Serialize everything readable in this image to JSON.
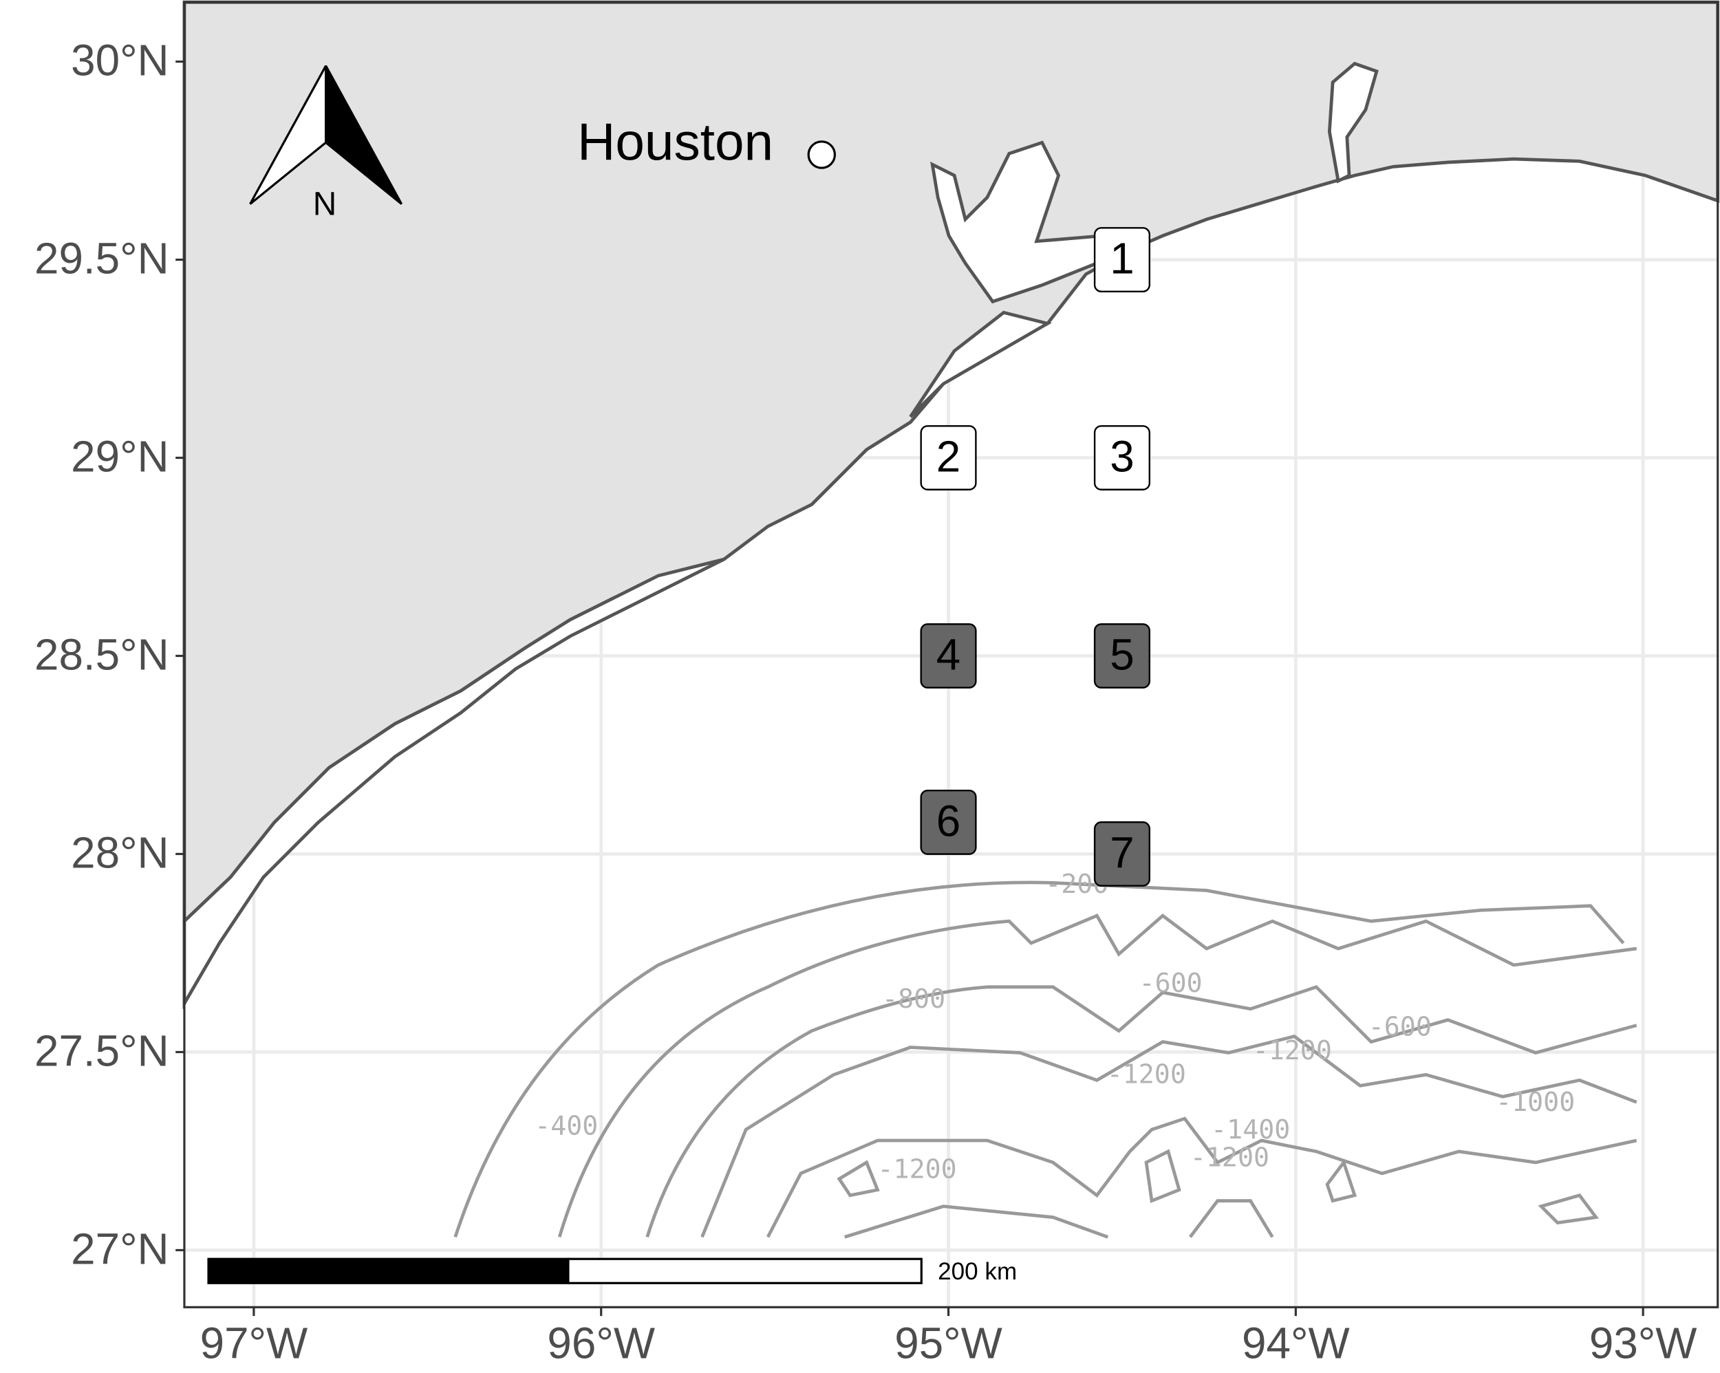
{
  "map": {
    "xlim": [
      -97.2,
      -92.785
    ],
    "ylim": [
      26.856,
      30.15
    ],
    "xticks": [
      {
        "value": -97,
        "label": "97°W"
      },
      {
        "value": -96,
        "label": "96°W"
      },
      {
        "value": -95,
        "label": "95°W"
      },
      {
        "value": -94,
        "label": "94°W"
      },
      {
        "value": -93,
        "label": "93°W"
      }
    ],
    "yticks": [
      {
        "value": 27,
        "label": "27°N"
      },
      {
        "value": 27.5,
        "label": "27.5°N"
      },
      {
        "value": 28,
        "label": "28°N"
      },
      {
        "value": 28.5,
        "label": "28.5°N"
      },
      {
        "value": 29,
        "label": "29°N"
      },
      {
        "value": 29.5,
        "label": "29.5°N"
      },
      {
        "value": 30,
        "label": "30°N"
      }
    ],
    "grid": true,
    "city": {
      "name": "Houston",
      "lon": -95.365,
      "lat": 29.765
    },
    "stations": [
      {
        "label": "1",
        "lon": -94.5,
        "lat": 29.5,
        "color": "#ffffff"
      },
      {
        "label": "2",
        "lon": -95.0,
        "lat": 29.0,
        "color": "#ffffff"
      },
      {
        "label": "3",
        "lon": -94.5,
        "lat": 29.0,
        "color": "#ffffff"
      },
      {
        "label": "4",
        "lon": -95.0,
        "lat": 28.5,
        "color": "#666666"
      },
      {
        "label": "5",
        "lon": -94.5,
        "lat": 28.5,
        "color": "#666666"
      },
      {
        "label": "6",
        "lon": -95.0,
        "lat": 28.08,
        "color": "#666666"
      },
      {
        "label": "7",
        "lon": -94.5,
        "lat": 28.0,
        "color": "#666666"
      }
    ],
    "contour_labels": [
      {
        "value": -200,
        "lon": -94.63,
        "lat": 27.92
      },
      {
        "value": -600,
        "lon": -94.36,
        "lat": 27.67
      },
      {
        "value": -800,
        "lon": -95.1,
        "lat": 27.63
      },
      {
        "value": -600,
        "lon": -93.7,
        "lat": 27.56
      },
      {
        "value": -1200,
        "lon": -94.01,
        "lat": 27.5
      },
      {
        "value": -1200,
        "lon": -94.43,
        "lat": 27.44
      },
      {
        "value": -400,
        "lon": -96.1,
        "lat": 27.31
      },
      {
        "value": -1000,
        "lon": -93.31,
        "lat": 27.37
      },
      {
        "value": -1200,
        "lon": -95.09,
        "lat": 27.2
      },
      {
        "value": -1400,
        "lon": -94.13,
        "lat": 27.3
      },
      {
        "value": -1200,
        "lon": -94.19,
        "lat": 27.23
      }
    ],
    "scale_bar": {
      "label": "200 km"
    },
    "north_arrow": {
      "label": "N"
    }
  }
}
